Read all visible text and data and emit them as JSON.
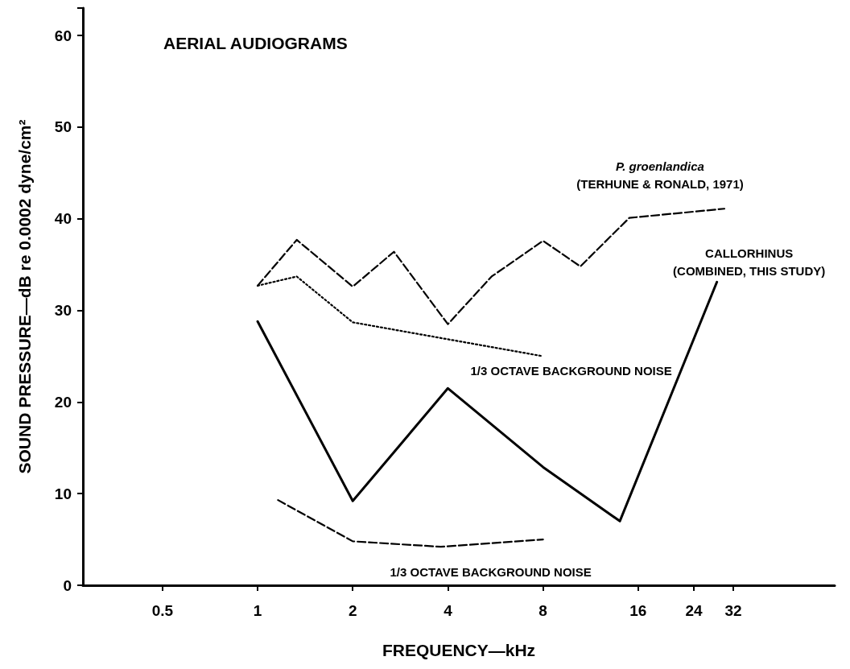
{
  "chart_data": {
    "type": "line",
    "title": "AERIAL AUDIOGRAMS",
    "xlabel": "FREQUENCY—kHz",
    "ylabel": "SOUND PRESSURE—dB re 0.0002 dyne/cm²",
    "log": "x",
    "grid": false,
    "legend": false,
    "marker": "none",
    "xlim": [
      0.28,
      67
    ],
    "xticks": [
      0.5,
      1,
      2,
      4,
      8,
      16,
      24,
      32
    ],
    "ylim": [
      0,
      63
    ],
    "yticks": [
      0,
      10,
      20,
      30,
      40,
      50,
      60
    ],
    "series": [
      {
        "name": "P. groenlandica\n(TERHUNE & RONALD, 1971)",
        "color": "#000000",
        "line_style": "dashed",
        "x": [
          1,
          1.33,
          2,
          2.7,
          4,
          5.5,
          8,
          10.5,
          15,
          30
        ],
        "values": [
          32.7,
          37.7,
          32.6,
          36.4,
          28.5,
          33.7,
          37.6,
          34.8,
          40.1,
          41.1
        ]
      },
      {
        "name": "1/3 OCTAVE BACKGROUND NOISE",
        "color": "#000000",
        "line_style": "dotted",
        "x": [
          1,
          1.33,
          2,
          8
        ],
        "values": [
          32.7,
          33.7,
          28.7,
          25.0
        ]
      },
      {
        "name": "CALLORHINUS\n(COMBINED, THIS STUDY)",
        "color": "#000000",
        "line_style": "solid",
        "x": [
          1,
          2,
          4,
          8,
          14,
          28.4
        ],
        "values": [
          28.8,
          9.2,
          21.5,
          12.9,
          7.0,
          33.1
        ]
      },
      {
        "name": "1/3 OCTAVE BACKGROUND NOISE",
        "color": "#000000",
        "line_style": "dashed",
        "x": [
          1.16,
          2,
          3.8,
          8
        ],
        "values": [
          9.3,
          4.8,
          4.2,
          5.0
        ]
      }
    ]
  }
}
